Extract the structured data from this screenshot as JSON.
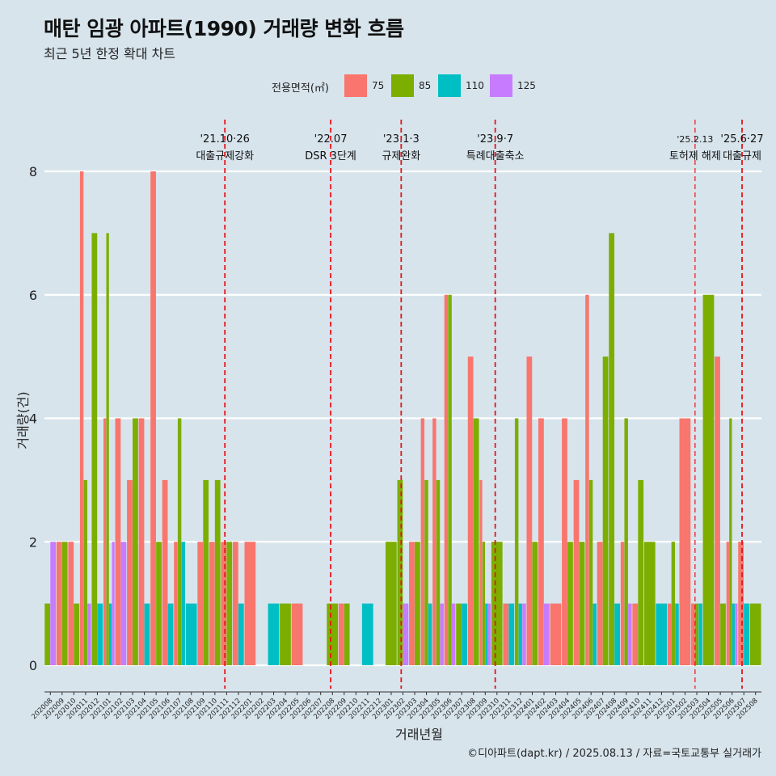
{
  "chart_data": {
    "type": "bar",
    "title": "매탄 임광 아파트(1990) 거래량 변화 흐름",
    "subtitle": "최근 5년 한정 확대 차트",
    "xlabel": "거래년월",
    "ylabel": "거래량(건)",
    "caption": "©디아파트(dapt.kr) / 2025.08.13 / 자료=국토교통부 실거래가",
    "legend_title": "전용면적(㎡)",
    "legend_position": "top",
    "grid": true,
    "ylim": [
      0,
      8.5
    ],
    "yticks": [
      0,
      2,
      4,
      6,
      8
    ],
    "categories": [
      "202008",
      "202009",
      "202010",
      "202011",
      "202012",
      "202101",
      "202102",
      "202103",
      "202104",
      "202105",
      "202106",
      "202107",
      "202108",
      "202109",
      "202110",
      "202111",
      "202112",
      "202201",
      "202202",
      "202203",
      "202204",
      "202205",
      "202206",
      "202207",
      "202208",
      "202209",
      "202210",
      "202211",
      "202212",
      "202301",
      "202302",
      "202303",
      "202304",
      "202305",
      "202306",
      "202307",
      "202308",
      "202309",
      "202310",
      "202311",
      "202312",
      "202401",
      "202402",
      "202403",
      "202404",
      "202405",
      "202406",
      "202407",
      "202408",
      "202409",
      "202410",
      "202411",
      "202412",
      "202501",
      "202502",
      "202503",
      "202504",
      "202505",
      "202506",
      "202507",
      "202508"
    ],
    "series": [
      {
        "name": "75",
        "color": "#f8766d",
        "values": [
          0,
          2,
          2,
          8,
          0,
          4,
          4,
          3,
          4,
          8,
          3,
          2,
          0,
          2,
          2,
          2,
          2,
          2,
          0,
          0,
          0,
          1,
          0,
          0,
          0,
          1,
          0,
          0,
          0,
          0,
          0,
          2,
          4,
          4,
          6,
          0,
          5,
          3,
          0,
          1,
          0,
          5,
          4,
          1,
          4,
          3,
          6,
          2,
          0,
          2,
          1,
          0,
          0,
          1,
          4,
          1,
          0,
          5,
          2,
          2,
          0
        ]
      },
      {
        "name": "85",
        "color": "#7cae00",
        "values": [
          1,
          2,
          1,
          3,
          7,
          7,
          0,
          4,
          0,
          2,
          0,
          4,
          0,
          3,
          3,
          2,
          0,
          0,
          0,
          0,
          1,
          0,
          0,
          0,
          1,
          1,
          0,
          0,
          0,
          2,
          3,
          2,
          3,
          3,
          6,
          1,
          4,
          2,
          2,
          0,
          4,
          2,
          0,
          0,
          2,
          2,
          3,
          5,
          7,
          4,
          3,
          2,
          0,
          2,
          0,
          1,
          6,
          1,
          4,
          0,
          1
        ]
      },
      {
        "name": "110",
        "color": "#00bfc4",
        "values": [
          0,
          0,
          0,
          0,
          1,
          1,
          0,
          0,
          1,
          0,
          1,
          2,
          1,
          0,
          0,
          0,
          1,
          0,
          0,
          1,
          0,
          0,
          0,
          0,
          0,
          0,
          0,
          1,
          0,
          0,
          0,
          0,
          1,
          0,
          0,
          1,
          0,
          1,
          0,
          1,
          1,
          0,
          0,
          0,
          0,
          0,
          1,
          0,
          1,
          0,
          0,
          0,
          1,
          1,
          0,
          1,
          0,
          0,
          1,
          1,
          0
        ]
      },
      {
        "name": "125",
        "color": "#c77cff",
        "values": [
          2,
          0,
          0,
          1,
          0,
          2,
          2,
          0,
          0,
          0,
          0,
          0,
          0,
          0,
          0,
          0,
          0,
          0,
          0,
          0,
          0,
          0,
          0,
          0,
          0,
          0,
          0,
          0,
          0,
          0,
          1,
          0,
          0,
          1,
          1,
          0,
          0,
          1,
          0,
          0,
          1,
          0,
          1,
          0,
          0,
          0,
          0,
          0,
          0,
          1,
          0,
          0,
          0,
          0,
          0,
          0,
          0,
          0,
          1,
          0,
          0
        ]
      }
    ],
    "events": [
      {
        "date": "'21.10·26",
        "label": "대출규제강화",
        "after": "202110"
      },
      {
        "date": "'22.07",
        "label": "DSR 3단계",
        "after": "202207"
      },
      {
        "date": "'23.1·3",
        "label": "규제완화",
        "after": "202301"
      },
      {
        "date": "'23.9·7",
        "label": "특례대출축소",
        "after": "202309"
      },
      {
        "date": "'25.2.13",
        "label": "토허제 해제",
        "after": "202502"
      },
      {
        "date": "'25.6·27",
        "label": "대출규제",
        "after": "202506"
      }
    ],
    "event_line_color": "#e8131b"
  }
}
